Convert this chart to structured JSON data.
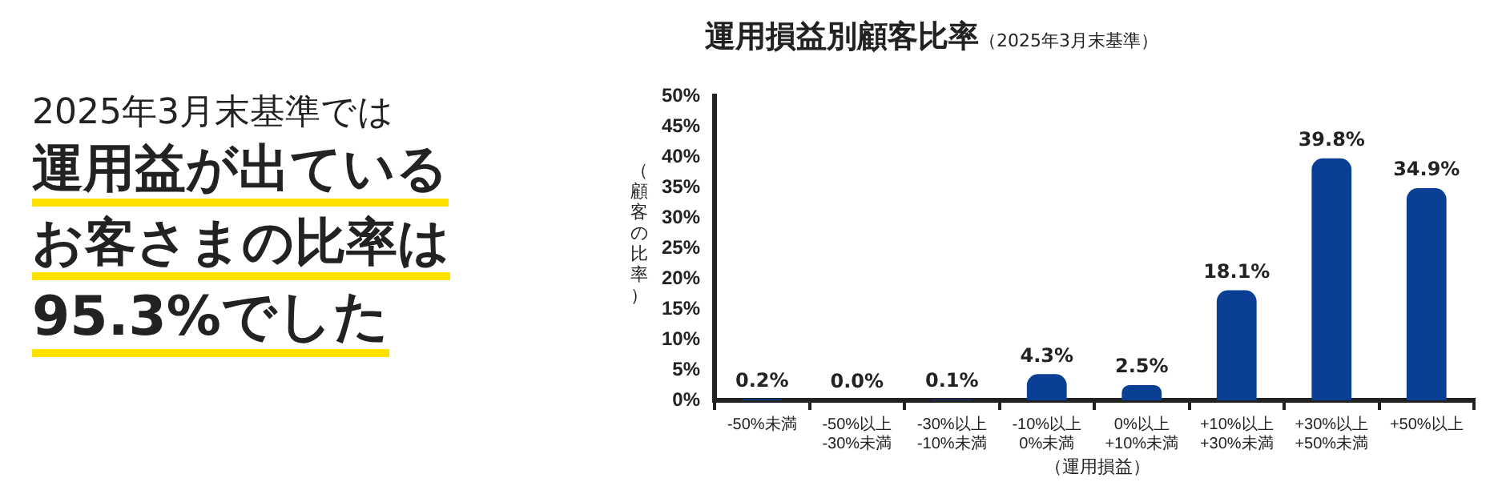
{
  "chart_data": {
    "type": "bar",
    "title": "運用損益別顧客比率",
    "subtitle": "（2025年3月末基準）",
    "xlabel": "（運用損益）",
    "ylabel": "（顧客の比率）",
    "categories": [
      "-50%未満",
      "-50%以上\n-30%未満",
      "-30%以上\n-10%未満",
      "-10%以上\n0%未満",
      "0%以上\n+10%未満",
      "+10%以上\n+30%未満",
      "+30%以上\n+50%未満",
      "+50%以上"
    ],
    "values": [
      0.2,
      0.0,
      0.1,
      4.3,
      2.5,
      18.1,
      39.8,
      34.9
    ],
    "color": "#0a3f94",
    "ylim": [
      0,
      50
    ],
    "yticks": [
      {
        "value": 0,
        "label": "0%"
      },
      {
        "value": 5,
        "label": "5%"
      },
      {
        "value": 10,
        "label": "10%"
      },
      {
        "value": 15,
        "label": "15%"
      },
      {
        "value": 20,
        "label": "20%"
      },
      {
        "value": 25,
        "label": "25%"
      },
      {
        "value": 30,
        "label": "30%"
      },
      {
        "value": 35,
        "label": "35%"
      },
      {
        "value": 40,
        "label": "40%"
      },
      {
        "value": 45,
        "label": "45%"
      },
      {
        "value": 50,
        "label": "50%"
      }
    ],
    "value_labels": [
      "0.2%",
      "0.0%",
      "0.1%",
      "4.3%",
      "2.5%",
      "18.1%",
      "39.8%",
      "34.9%"
    ],
    "grid": false,
    "legend": false,
    "annotations": [
      "2025年3月末基準では",
      "運用益が出ている",
      "お客さまの比率は",
      "95.3%でした"
    ]
  }
}
